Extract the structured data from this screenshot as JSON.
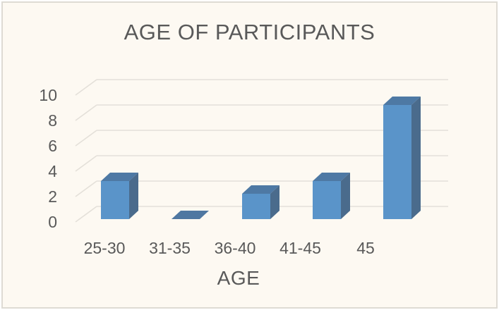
{
  "window": {
    "background": "#FDF9F2",
    "border_color": "#DEDBD4"
  },
  "chart_data": {
    "type": "bar",
    "variant": "3d-column",
    "title": "AGE OF PARTICIPANTS",
    "xlabel": "AGE",
    "ylabel": "",
    "categories": [
      "25-30",
      "31-35",
      "36-40",
      "41-45",
      "45"
    ],
    "values": [
      3,
      0,
      2,
      3,
      9
    ],
    "yticks": [
      0,
      2,
      4,
      6,
      8,
      10
    ],
    "ylim": [
      0,
      10
    ],
    "grid": true,
    "legend_position": "none",
    "colors": {
      "bar_front": "#5A94C9",
      "bar_top": "#4E79A4",
      "bar_side": "#4A6B8C",
      "bar_zero": "#4F77A1",
      "gridline": "#E4E0D9",
      "text": "#595959",
      "plot_background": "#FDF9F2"
    }
  }
}
